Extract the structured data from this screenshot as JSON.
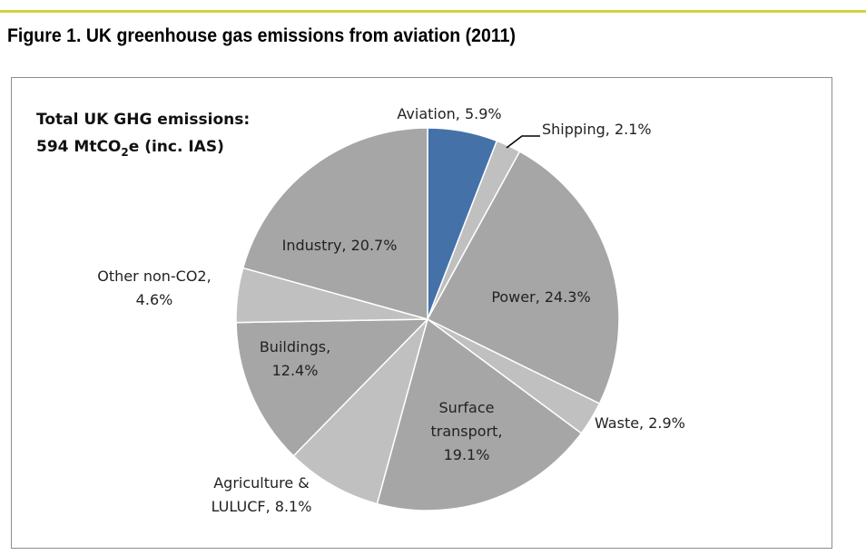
{
  "title": "Figure 1. UK greenhouse gas emissions from aviation (2011)",
  "chart_data": {
    "type": "pie",
    "title": "",
    "annotation": {
      "line1": "Total UK GHG emissions:",
      "line2_prefix": "594 MtCO",
      "line2_sub": "2",
      "line2_suffix": "e (inc. IAS)"
    },
    "start": "12 o'clock, clockwise",
    "slices": [
      {
        "label": [
          "Aviation, 5.9%"
        ],
        "value": 5.9,
        "color": "#4472a8"
      },
      {
        "label": [
          "Shipping, 2.1%"
        ],
        "value": 2.1,
        "color": "#c0c0c0"
      },
      {
        "label": [
          "Power, 24.3%"
        ],
        "value": 24.3,
        "color": "#a6a6a6"
      },
      {
        "label": [
          "Waste, 2.9%"
        ],
        "value": 2.9,
        "color": "#c0c0c0"
      },
      {
        "label": [
          "Surface",
          "transport,",
          "19.1%"
        ],
        "value": 19.1,
        "color": "#a6a6a6"
      },
      {
        "label": [
          "Agriculture &",
          "LULUCF, 8.1%"
        ],
        "value": 8.1,
        "color": "#c0c0c0"
      },
      {
        "label": [
          "Buildings,",
          "12.4%"
        ],
        "value": 12.4,
        "color": "#a6a6a6"
      },
      {
        "label": [
          "Other non-CO2,",
          "4.6%"
        ],
        "value": 4.6,
        "color": "#c0c0c0"
      },
      {
        "label": [
          "Industry, 20.7%"
        ],
        "value": 20.7,
        "color": "#a6a6a6"
      }
    ]
  }
}
